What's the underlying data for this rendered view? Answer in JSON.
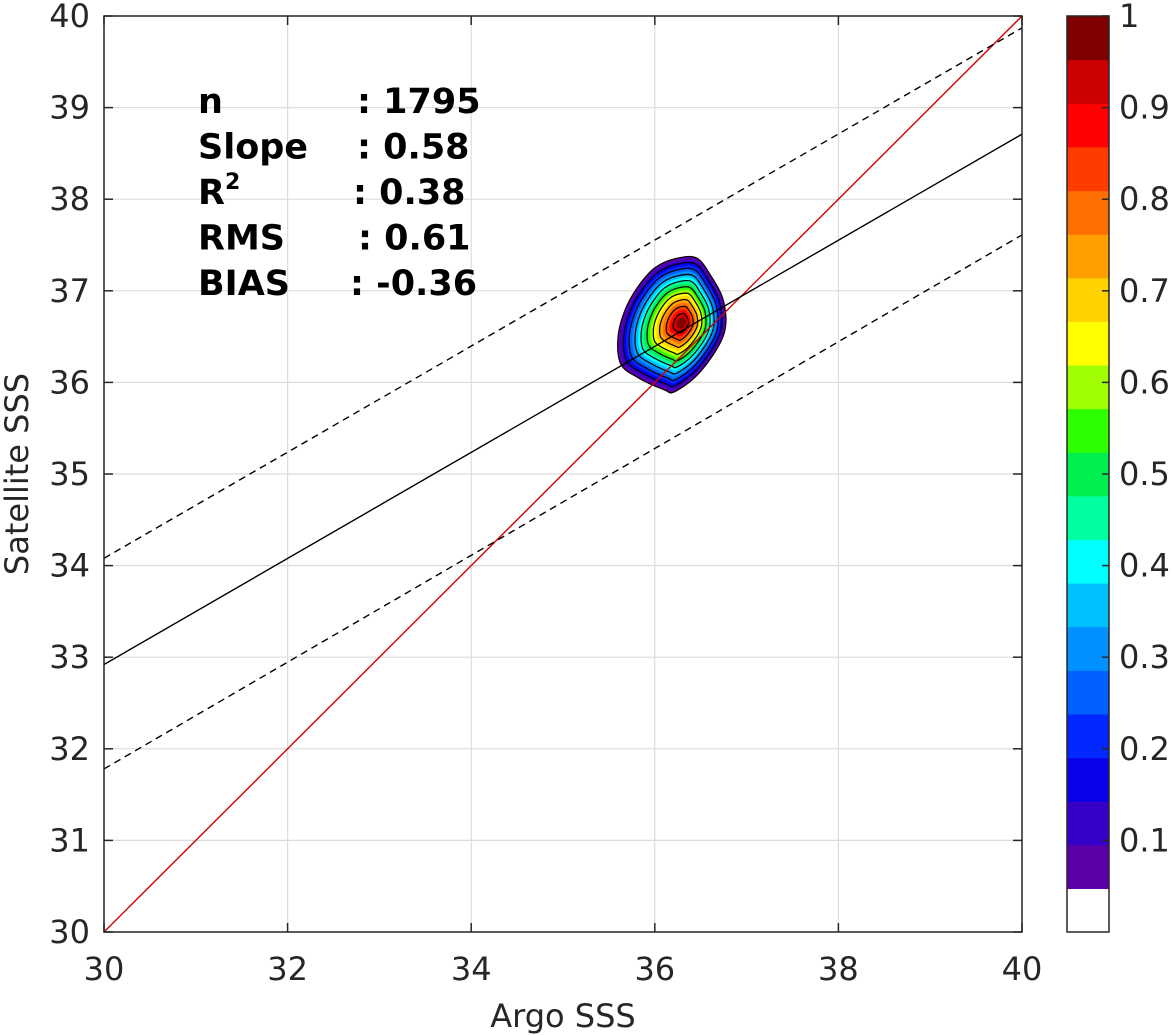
{
  "chart_data": {
    "type": "contour",
    "xlabel": "Argo SSS",
    "ylabel": "Satellite SSS",
    "xlim": [
      30,
      40
    ],
    "ylim": [
      30,
      40
    ],
    "xticks": [
      "30",
      "32",
      "34",
      "36",
      "38",
      "40"
    ],
    "yticks": [
      "30",
      "31",
      "32",
      "33",
      "34",
      "35",
      "36",
      "37",
      "38",
      "39",
      "40"
    ],
    "grid": true,
    "stats": [
      {
        "key": "n",
        "sup": "",
        "value": ": 1795"
      },
      {
        "key": "Slope",
        "sup": "",
        "value": ": 0.58"
      },
      {
        "key": "R",
        "sup": "2",
        "value": ": 0.38"
      },
      {
        "key": "RMS",
        "sup": "",
        "value": ": 0.61"
      },
      {
        "key": "BIAS",
        "sup": "",
        "value": ": -0.36"
      }
    ],
    "lines": [
      {
        "role": "one-to-one",
        "color": "#d00000",
        "dashed": false,
        "x": [
          30,
          40
        ],
        "y": [
          30,
          40
        ]
      },
      {
        "role": "regression",
        "color": "#000000",
        "dashed": false,
        "x": [
          30,
          40
        ],
        "y": [
          32.92,
          38.71
        ]
      },
      {
        "role": "upper-bound",
        "color": "#000000",
        "dashed": true,
        "x": [
          30,
          40
        ],
        "y": [
          34.08,
          39.87
        ]
      },
      {
        "role": "lower-bound",
        "color": "#000000",
        "dashed": true,
        "x": [
          30,
          40
        ],
        "y": [
          31.78,
          37.61
        ]
      }
    ],
    "density": {
      "center": [
        36.3,
        36.65
      ],
      "outer_contour": [
        [
          36.22,
          37.35
        ],
        [
          36.0,
          37.25
        ],
        [
          35.82,
          37.05
        ],
        [
          35.68,
          36.8
        ],
        [
          35.6,
          36.5
        ],
        [
          35.63,
          36.2
        ],
        [
          35.82,
          36.05
        ],
        [
          36.1,
          35.92
        ],
        [
          36.22,
          35.9
        ],
        [
          36.5,
          36.12
        ],
        [
          36.75,
          36.52
        ],
        [
          36.75,
          36.88
        ],
        [
          36.6,
          37.18
        ],
        [
          36.45,
          37.36
        ]
      ],
      "levels": [
        0.1,
        0.2,
        0.3,
        0.4,
        0.5,
        0.6,
        0.7,
        0.8,
        0.9,
        1.0
      ]
    },
    "colorbar": {
      "ticks": [
        "0.1",
        "0.2",
        "0.3",
        "0.4",
        "0.5",
        "0.6",
        "0.7",
        "0.8",
        "0.9",
        "1"
      ],
      "min": 0,
      "max": 1,
      "colors": [
        "#ffffff",
        "#5b00a8",
        "#3600c8",
        "#0a00ea",
        "#0028ff",
        "#0060ff",
        "#0090ff",
        "#00bfff",
        "#00ffff",
        "#00ffa0",
        "#00f050",
        "#2eff00",
        "#a0ff00",
        "#ffff00",
        "#ffd200",
        "#ffa000",
        "#ff6e00",
        "#ff3c00",
        "#ff0000",
        "#cc0000",
        "#800000"
      ]
    }
  }
}
